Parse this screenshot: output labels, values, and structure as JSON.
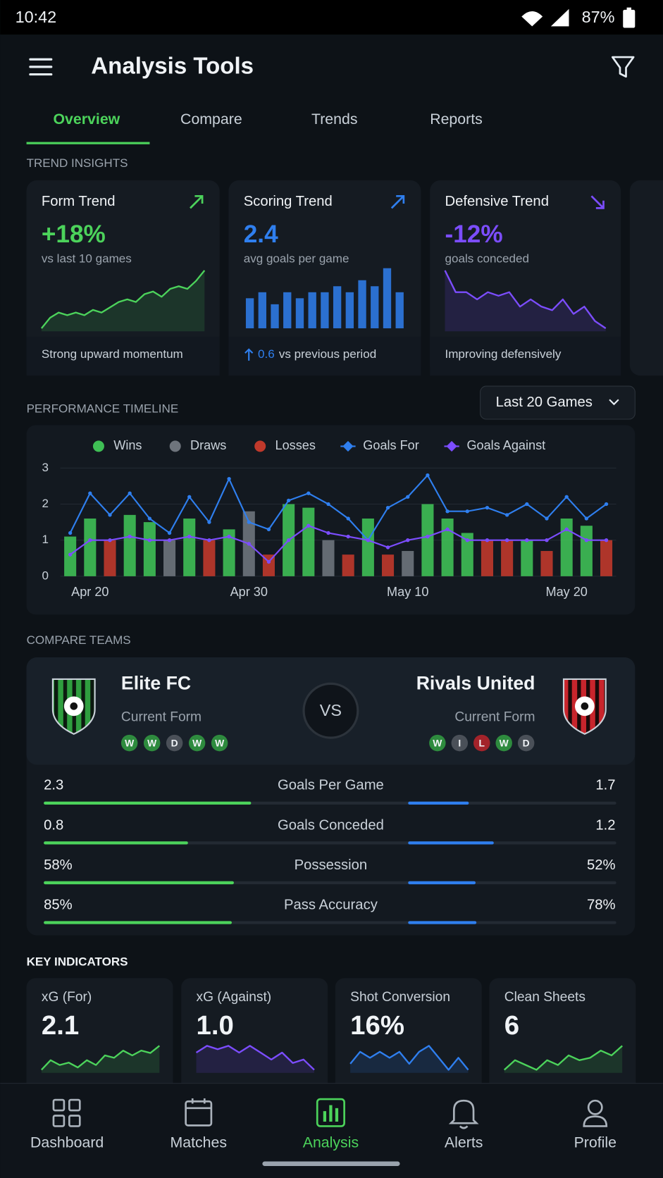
{
  "status_bar": {
    "time": "10:42",
    "battery": "87%"
  },
  "header": {
    "title": "Analysis Tools"
  },
  "tabs": {
    "items": [
      "Overview",
      "Compare",
      "Trends",
      "Reports"
    ],
    "active": 0
  },
  "trend_insights": {
    "heading": "TREND INSIGHTS",
    "cards": [
      {
        "title": "Form Trend",
        "direction": "up",
        "value": "+18%",
        "caption": "vs last 10 games",
        "footer": "Strong upward momentum",
        "color": "#4cd35b",
        "chart": "line",
        "values": [
          1,
          3,
          4,
          3.5,
          4,
          3.5,
          4.5,
          4,
          5,
          6,
          6.5,
          6,
          7.5,
          8,
          7,
          8.5,
          9,
          8.5,
          10,
          12
        ]
      },
      {
        "title": "Scoring Trend",
        "direction": "up",
        "value": "2.4",
        "caption": "avg goals per game",
        "footer_delta": "0.6",
        "footer": "vs previous period",
        "color": "#2f7fef",
        "chart": "bar",
        "values": [
          5,
          6,
          4,
          6,
          5,
          6,
          6,
          7,
          6,
          8,
          7,
          10,
          6
        ]
      },
      {
        "title": "Defensive Trend",
        "direction": "down",
        "value": "-12%",
        "caption": "goals conceded",
        "footer": "Improving defensively",
        "color": "#7c4dff",
        "chart": "line",
        "values": [
          9,
          6,
          6,
          5,
          6,
          5.5,
          6,
          4,
          5,
          4,
          3.5,
          5,
          3,
          4,
          2,
          1
        ]
      }
    ]
  },
  "performance_timeline": {
    "heading": "PERFORMANCE TIMELINE",
    "filter": "Last 20 Games"
  },
  "chart_data": {
    "type": "bar",
    "categories": [
      null,
      "Apr 20",
      null,
      null,
      null,
      null,
      null,
      null,
      null,
      "Apr 30",
      null,
      null,
      null,
      null,
      null,
      null,
      null,
      "May 10",
      null,
      null,
      null,
      null,
      null,
      null,
      null,
      "May 20",
      null,
      null
    ],
    "series": [
      {
        "name": "Wins",
        "type": "bar",
        "color": "#3fbf55",
        "values": [
          1.1,
          1.6,
          null,
          1.7,
          1.5,
          null,
          1.6,
          null,
          1.3,
          null,
          null,
          2.0,
          1.9,
          null,
          null,
          1.6,
          null,
          null,
          2.0,
          1.6,
          1.2,
          null,
          null,
          1.0,
          null,
          1.6,
          1.4,
          null
        ]
      },
      {
        "name": "Draws",
        "type": "bar",
        "color": "#6e747c",
        "values": [
          null,
          null,
          null,
          null,
          null,
          1.0,
          null,
          null,
          null,
          1.8,
          null,
          null,
          null,
          1.0,
          null,
          null,
          null,
          0.7,
          null,
          null,
          null,
          null,
          null,
          null,
          null,
          null,
          null,
          null
        ]
      },
      {
        "name": "Losses",
        "type": "bar",
        "color": "#c0392b",
        "values": [
          null,
          null,
          1.0,
          null,
          null,
          null,
          null,
          1.0,
          null,
          null,
          0.6,
          null,
          null,
          null,
          0.6,
          null,
          0.6,
          null,
          null,
          null,
          null,
          1.0,
          1.0,
          null,
          0.7,
          null,
          null,
          1.0
        ]
      },
      {
        "name": "Goals For",
        "type": "line",
        "color": "#2f7fef",
        "values": [
          1.2,
          2.3,
          1.7,
          2.3,
          1.6,
          1.2,
          2.2,
          1.5,
          2.7,
          1.5,
          1.3,
          2.1,
          2.3,
          2.0,
          1.6,
          1.0,
          1.9,
          2.2,
          2.8,
          1.8,
          1.8,
          1.9,
          1.7,
          2.0,
          1.6,
          2.2,
          1.6,
          2.0
        ]
      },
      {
        "name": "Goals Against",
        "type": "line",
        "color": "#7c4dff",
        "values": [
          0.6,
          1.0,
          1.0,
          1.1,
          1.0,
          1.0,
          1.1,
          1.0,
          1.1,
          0.9,
          0.4,
          1.0,
          1.4,
          1.2,
          1.1,
          1.0,
          0.8,
          1.0,
          1.1,
          1.3,
          1.0,
          1.0,
          1.0,
          1.0,
          1.0,
          1.3,
          1.0,
          1.0
        ]
      }
    ],
    "ylim": [
      0,
      3
    ],
    "yticks": [
      0,
      1,
      2,
      3
    ],
    "grid": true
  },
  "compare": {
    "heading": "COMPARE TEAMS",
    "vs": "VS",
    "teams": [
      {
        "name": "Elite FC",
        "form_label": "Current Form",
        "form": [
          "W",
          "W",
          "D",
          "W",
          "W"
        ]
      },
      {
        "name": "Rivals United",
        "form_label": "Current Form",
        "form": [
          "W",
          "I",
          "L",
          "W",
          "D"
        ]
      }
    ],
    "stats": [
      {
        "name": "Goals Per Game",
        "left": 2.3,
        "right": 1.7
      },
      {
        "name": "Goals Conceded",
        "left": 0.8,
        "right": 1.2
      },
      {
        "name": "Possession",
        "left": {
          "value": 58,
          "label": "58%"
        },
        "right": {
          "value": 52,
          "label": "52%"
        }
      },
      {
        "name": "Pass Accuracy",
        "left": {
          "value": 85,
          "label": "85%"
        },
        "right": {
          "value": 78,
          "label": "78%"
        }
      }
    ]
  },
  "key_indicators": {
    "heading": "KEY INDICATORS",
    "cards": [
      {
        "title": "xG (For)",
        "value": "2.1",
        "color": "#4cd35b",
        "values": [
          2,
          4,
          3,
          3.5,
          2.5,
          4,
          3,
          5,
          4.5,
          6,
          5,
          6,
          5.5,
          7
        ]
      },
      {
        "title": "xG (Against)",
        "value": "1.0",
        "color": "#7c4dff",
        "values": [
          4,
          5,
          4.5,
          5,
          4,
          5,
          4,
          3,
          4,
          2.5,
          3,
          1.5
        ]
      },
      {
        "title": "Shot Conversion",
        "value": "16%",
        "color": "#2f7fef",
        "values": [
          2,
          4,
          3,
          4,
          3,
          4,
          2,
          4,
          5,
          3,
          1,
          3,
          1
        ]
      },
      {
        "title": "Clean Sheets",
        "value": "6",
        "color": "#4cd35b",
        "values": [
          2,
          4,
          3,
          2,
          4,
          3,
          5,
          4,
          4.5,
          6,
          5,
          7
        ]
      }
    ]
  },
  "bottom_nav": {
    "items": [
      "Dashboard",
      "Matches",
      "Analysis",
      "Alerts",
      "Profile"
    ],
    "active": 2
  }
}
